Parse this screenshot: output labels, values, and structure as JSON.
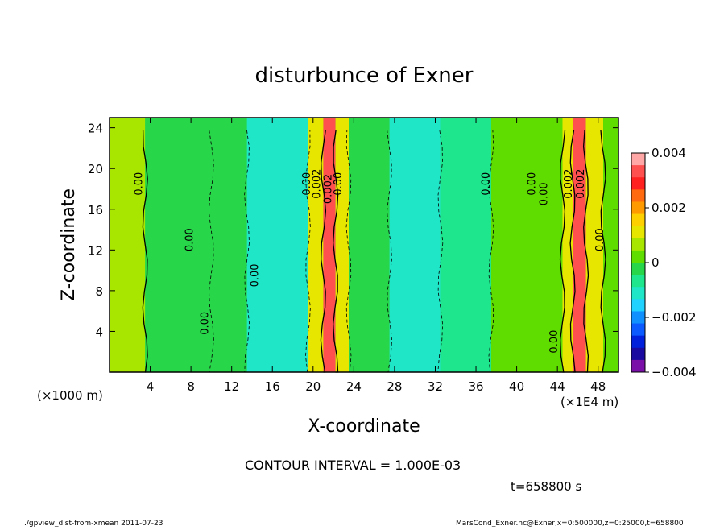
{
  "chart_data": {
    "type": "heatmap",
    "title": "disturbunce of Exner",
    "xlabel": "X-coordinate",
    "ylabel": "Z-coordinate",
    "x_unit_left": "(×1000 m)",
    "x_unit_right": "(×1E4 m)",
    "xlim": [
      0,
      50
    ],
    "ylim": [
      0,
      25
    ],
    "x_ticks": [
      "4",
      "8",
      "12",
      "16",
      "20",
      "24",
      "28",
      "32",
      "36",
      "40",
      "44",
      "48"
    ],
    "y_ticks": [
      "4",
      "8",
      "12",
      "16",
      "20",
      "24"
    ],
    "colorbar": {
      "range": [
        -0.004,
        0.004
      ],
      "tick_labels": [
        "0.004",
        "0.002",
        "0",
        "−0.002",
        "−0.004"
      ],
      "colors": [
        "#ffa6a6",
        "#ff5050",
        "#ff2020",
        "#ff6a10",
        "#ff9a00",
        "#ffd000",
        "#e6e600",
        "#a8e600",
        "#60dd00",
        "#28d64a",
        "#1ee68c",
        "#20e6c8",
        "#20d2ff",
        "#1090ff",
        "#0a5aff",
        "#0020dc",
        "#1a0aa0",
        "#7a10a8"
      ]
    },
    "bands": [
      {
        "x": [
          0,
          3.5
        ],
        "value": 0.0005
      },
      {
        "x": [
          3.5,
          10
        ],
        "value": 0.0
      },
      {
        "x": [
          10,
          13.5
        ],
        "value": -0.0003
      },
      {
        "x": [
          13.5,
          19.5
        ],
        "value": -0.0012
      },
      {
        "x": [
          19.5,
          21.0
        ],
        "value": 0.001
      },
      {
        "x": [
          21.0,
          22.2
        ],
        "value": 0.0034
      },
      {
        "x": [
          22.2,
          23.5
        ],
        "value": 0.001
      },
      {
        "x": [
          23.5,
          27.5
        ],
        "value": -0.0002
      },
      {
        "x": [
          27.5,
          32.5
        ],
        "value": -0.0013
      },
      {
        "x": [
          32.5,
          37.5
        ],
        "value": -0.0008
      },
      {
        "x": [
          37.5,
          44.5
        ],
        "value": 0.0003
      },
      {
        "x": [
          44.5,
          45.5
        ],
        "value": 0.0012
      },
      {
        "x": [
          45.5,
          46.8
        ],
        "value": 0.0033
      },
      {
        "x": [
          46.8,
          48.5
        ],
        "value": 0.001
      },
      {
        "x": [
          48.5,
          50
        ],
        "value": 0.0004
      }
    ],
    "contour_labels": [
      {
        "text": "0.00",
        "x": 3.2,
        "z": 18.5
      },
      {
        "text": "0.00",
        "x": 8.2,
        "z": 13.0
      },
      {
        "text": "0.00",
        "x": 9.7,
        "z": 4.8
      },
      {
        "text": "0.00",
        "x": 14.6,
        "z": 9.5
      },
      {
        "text": "0.00",
        "x": 19.7,
        "z": 18.5
      },
      {
        "text": "0.002",
        "x": 20.7,
        "z": 18.5
      },
      {
        "text": "0.002",
        "x": 21.8,
        "z": 18.0
      },
      {
        "text": "0.00",
        "x": 22.8,
        "z": 18.5
      },
      {
        "text": "0.00",
        "x": 37.3,
        "z": 18.5
      },
      {
        "text": "0.00",
        "x": 41.8,
        "z": 18.5
      },
      {
        "text": "0.00",
        "x": 43.0,
        "z": 17.5
      },
      {
        "text": "0.002",
        "x": 45.4,
        "z": 18.5
      },
      {
        "text": "0.002",
        "x": 46.6,
        "z": 18.5
      },
      {
        "text": "0.00",
        "x": 44.0,
        "z": 3.0
      },
      {
        "text": "0.00",
        "x": 48.5,
        "z": 13.0
      }
    ]
  },
  "footer": {
    "contour_interval": "CONTOUR INTERVAL = 1.000E-03",
    "time": "t=658800 s",
    "left_note": "./gpview_dist-from-xmean  2011-07-23",
    "right_note": "MarsCond_Exner.nc@Exner,x=0:500000,z=0:25000,t=658800"
  }
}
